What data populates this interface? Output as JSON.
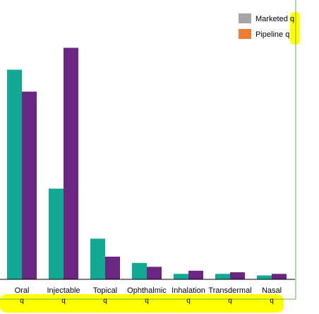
{
  "chart_data": {
    "type": "bar",
    "categories": [
      "Oral",
      "Injectable",
      "Topical",
      "Ophthalmic",
      "Inhalation",
      "Transdermal",
      "Nasal"
    ],
    "category_suffix": "q",
    "series": [
      {
        "name": "Marketed",
        "legend_suffix": "q",
        "legend_color": "#a5a5a5",
        "bar_color": "#12a994",
        "values": [
          268,
          116,
          52,
          21,
          7,
          7,
          5
        ]
      },
      {
        "name": "Pipeline",
        "legend_suffix": "q",
        "legend_color": "#ed7d31",
        "bar_color": "#6b2583",
        "values": [
          240,
          296,
          29,
          16,
          11,
          9,
          7
        ]
      }
    ],
    "ylim": [
      0,
      330
    ],
    "grid": false,
    "legend_position": "top-right",
    "highlight_color": "#ffff00"
  }
}
